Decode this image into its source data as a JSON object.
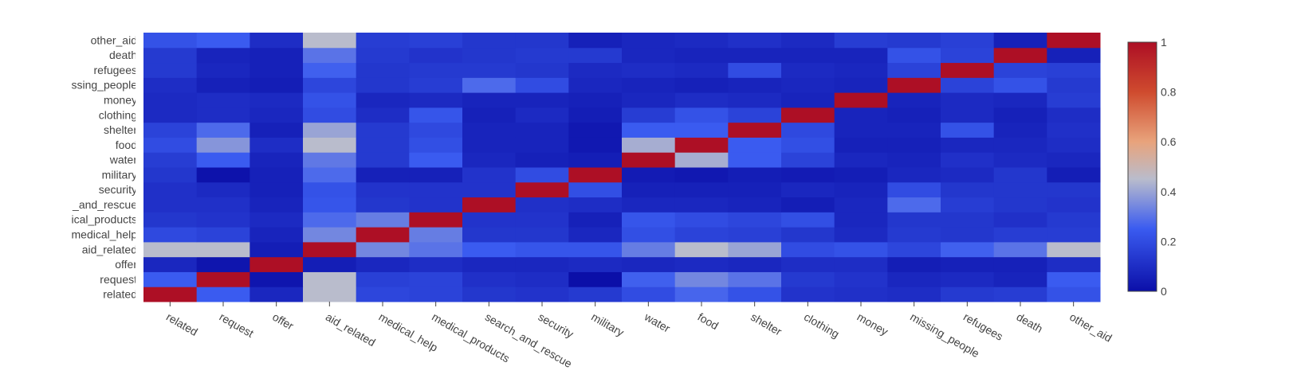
{
  "chart_data": {
    "type": "heatmap",
    "title": "",
    "xlabel": "",
    "ylabel": "",
    "x": [
      "related",
      "request",
      "offer",
      "aid_related",
      "medical_help",
      "medical_products",
      "search_and_rescue",
      "security",
      "military",
      "water",
      "food",
      "shelter",
      "clothing",
      "money",
      "missing_people",
      "refugees",
      "death",
      "other_aid"
    ],
    "y": [
      "related",
      "request",
      "offer",
      "aid_related",
      "medical_help",
      "medical_products",
      "search_and_rescue",
      "security",
      "military",
      "water",
      "food",
      "shelter",
      "clothing",
      "money",
      "missing_people",
      "refugees",
      "death",
      "other_aid"
    ],
    "y_tick_labels": [
      "related",
      "request",
      "offer",
      "aid_related",
      "medical_help",
      "ical_products",
      "_and_rescue",
      "security",
      "military",
      "water",
      "food",
      "shelter",
      "clothing",
      "money",
      "ssing_people",
      "refugees",
      "death",
      "other_aid"
    ],
    "z": [
      [
        1.0,
        0.25,
        0.08,
        0.45,
        0.18,
        0.17,
        0.13,
        0.12,
        0.14,
        0.2,
        0.27,
        0.22,
        0.12,
        0.11,
        0.1,
        0.14,
        0.15,
        0.22
      ],
      [
        0.25,
        1.0,
        0.02,
        0.45,
        0.16,
        0.17,
        0.11,
        0.1,
        0.0,
        0.26,
        0.34,
        0.3,
        0.14,
        0.12,
        0.08,
        0.09,
        0.07,
        0.25
      ],
      [
        0.08,
        0.02,
        1.0,
        0.05,
        0.08,
        0.1,
        0.08,
        0.08,
        0.09,
        0.08,
        0.09,
        0.08,
        0.1,
        0.1,
        0.05,
        0.06,
        0.06,
        0.1
      ],
      [
        0.45,
        0.45,
        0.05,
        1.0,
        0.34,
        0.3,
        0.25,
        0.23,
        0.23,
        0.32,
        0.45,
        0.4,
        0.2,
        0.22,
        0.18,
        0.26,
        0.3,
        0.45
      ],
      [
        0.19,
        0.17,
        0.07,
        0.34,
        1.0,
        0.32,
        0.13,
        0.13,
        0.08,
        0.21,
        0.17,
        0.16,
        0.13,
        0.09,
        0.14,
        0.13,
        0.15,
        0.15
      ],
      [
        0.13,
        0.12,
        0.09,
        0.28,
        0.32,
        1.0,
        0.12,
        0.12,
        0.06,
        0.23,
        0.2,
        0.18,
        0.21,
        0.08,
        0.13,
        0.13,
        0.11,
        0.14
      ],
      [
        0.11,
        0.11,
        0.07,
        0.23,
        0.13,
        0.12,
        1.0,
        0.11,
        0.1,
        0.08,
        0.08,
        0.07,
        0.05,
        0.08,
        0.28,
        0.15,
        0.13,
        0.12
      ],
      [
        0.11,
        0.09,
        0.06,
        0.22,
        0.12,
        0.12,
        0.12,
        1.0,
        0.21,
        0.06,
        0.06,
        0.06,
        0.08,
        0.07,
        0.2,
        0.13,
        0.13,
        0.13
      ],
      [
        0.13,
        0.01,
        0.06,
        0.28,
        0.06,
        0.06,
        0.12,
        0.2,
        1.0,
        0.04,
        0.03,
        0.05,
        0.04,
        0.05,
        0.08,
        0.09,
        0.13,
        0.05
      ],
      [
        0.15,
        0.25,
        0.07,
        0.31,
        0.14,
        0.25,
        0.08,
        0.06,
        0.05,
        1.0,
        0.42,
        0.25,
        0.17,
        0.08,
        0.07,
        0.11,
        0.09,
        0.08
      ],
      [
        0.2,
        0.37,
        0.1,
        0.45,
        0.14,
        0.21,
        0.07,
        0.07,
        0.03,
        0.42,
        1.0,
        0.25,
        0.21,
        0.06,
        0.06,
        0.08,
        0.08,
        0.1
      ],
      [
        0.17,
        0.28,
        0.06,
        0.4,
        0.14,
        0.19,
        0.07,
        0.07,
        0.03,
        0.25,
        0.25,
        1.0,
        0.19,
        0.07,
        0.07,
        0.22,
        0.07,
        0.11
      ],
      [
        0.09,
        0.1,
        0.08,
        0.2,
        0.1,
        0.23,
        0.06,
        0.09,
        0.05,
        0.15,
        0.22,
        0.17,
        1.0,
        0.07,
        0.06,
        0.09,
        0.06,
        0.1
      ],
      [
        0.09,
        0.1,
        0.09,
        0.22,
        0.08,
        0.09,
        0.07,
        0.07,
        0.06,
        0.08,
        0.1,
        0.09,
        0.07,
        1.0,
        0.07,
        0.09,
        0.08,
        0.15
      ],
      [
        0.1,
        0.06,
        0.05,
        0.18,
        0.13,
        0.15,
        0.28,
        0.2,
        0.08,
        0.07,
        0.06,
        0.07,
        0.08,
        0.07,
        1.0,
        0.17,
        0.22,
        0.14
      ],
      [
        0.14,
        0.08,
        0.06,
        0.26,
        0.13,
        0.14,
        0.14,
        0.13,
        0.09,
        0.1,
        0.09,
        0.2,
        0.09,
        0.08,
        0.17,
        1.0,
        0.17,
        0.16
      ],
      [
        0.14,
        0.07,
        0.06,
        0.3,
        0.14,
        0.12,
        0.13,
        0.14,
        0.14,
        0.08,
        0.07,
        0.07,
        0.07,
        0.07,
        0.22,
        0.17,
        1.0,
        0.06
      ],
      [
        0.22,
        0.25,
        0.1,
        0.45,
        0.15,
        0.16,
        0.13,
        0.13,
        0.06,
        0.08,
        0.09,
        0.11,
        0.09,
        0.15,
        0.14,
        0.16,
        0.06,
        1.0
      ]
    ],
    "zlim": [
      0,
      1
    ],
    "colorscale": [
      [
        0,
        "#0b0fa8"
      ],
      [
        0.25,
        "#3a5bf0"
      ],
      [
        0.45,
        "#b9bccc"
      ],
      [
        0.6,
        "#e8a37c"
      ],
      [
        0.8,
        "#cf4b2e"
      ],
      [
        1,
        "#ad0f25"
      ]
    ],
    "colorbar": {
      "ticks": [
        0,
        0.2,
        0.4,
        0.6,
        0.8,
        1
      ],
      "tick_labels": [
        "0",
        "0.2",
        "0.4",
        "0.6",
        "0.8",
        "1"
      ],
      "placement": "right"
    },
    "grid": false
  }
}
